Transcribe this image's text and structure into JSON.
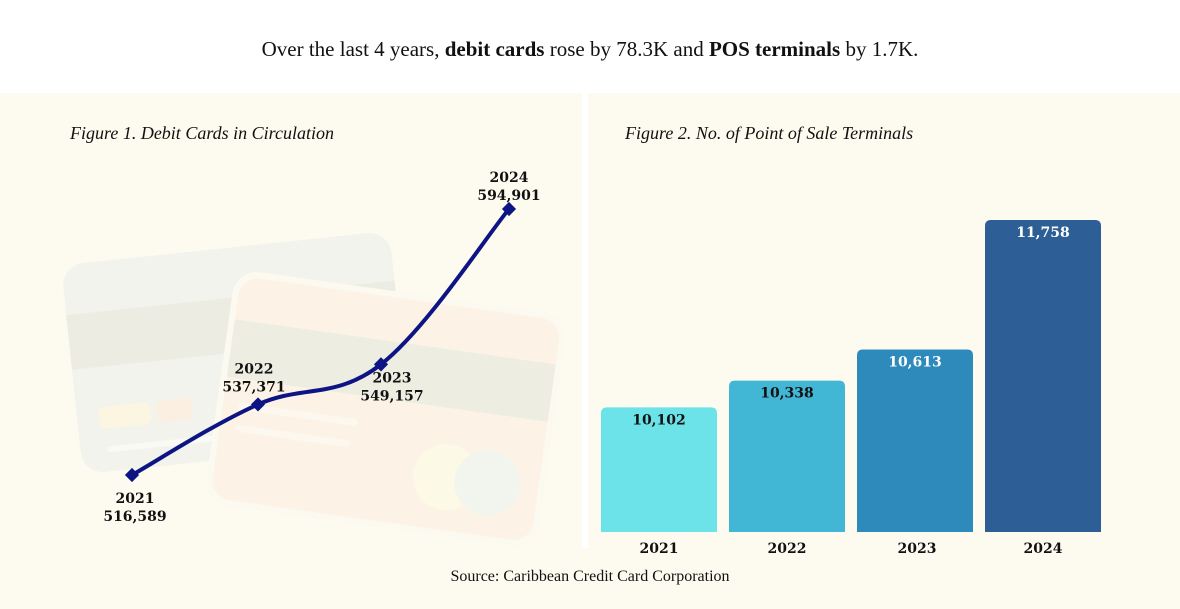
{
  "headline": {
    "part1": "Over the last 4 years, ",
    "bold1": "debit cards",
    "part2": " rose by 78.3K and ",
    "bold2": "POS terminals",
    "part3": " by 1.7K."
  },
  "source": "Source: Caribbean Credit Card Corporation",
  "colors": {
    "line": "#0d1585",
    "bars": [
      "#6be3e8",
      "#42b6d5",
      "#2d8aba",
      "#2e5e96"
    ],
    "bar_label_text": [
      "#111111",
      "#111111",
      "#ffffff",
      "#ffffff"
    ],
    "background": "#fdfbef"
  },
  "chart_data": [
    {
      "type": "line",
      "title": "Figure 1.  Debit Cards in Circulation",
      "xlabel": "",
      "ylabel": "",
      "categories": [
        "2021",
        "2022",
        "2023",
        "2024"
      ],
      "values": [
        516589,
        537371,
        549157,
        594901
      ],
      "value_labels": [
        "516,589",
        "537,371",
        "549,157",
        "594,901"
      ],
      "marker": "diamond",
      "grid": false,
      "legend": "none"
    },
    {
      "type": "bar",
      "title": "Figure 2.  No. of Point of Sale Terminals",
      "xlabel": "",
      "ylabel": "",
      "categories": [
        "2021",
        "2022",
        "2023",
        "2024"
      ],
      "values": [
        10102,
        10338,
        10613,
        11758
      ],
      "value_labels": [
        "10,102",
        "10,338",
        "10,613",
        "11,758"
      ],
      "grid": false,
      "legend": "none"
    }
  ]
}
